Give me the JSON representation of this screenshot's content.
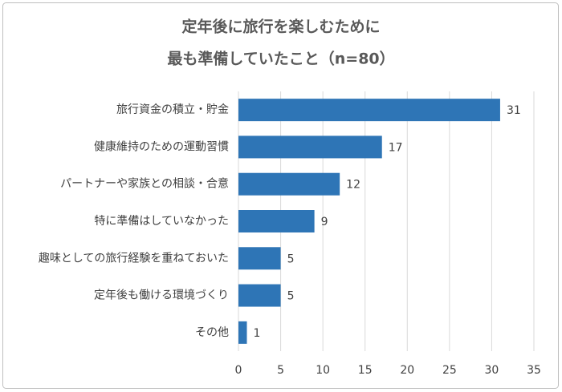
{
  "chart_data": {
    "type": "bar",
    "orientation": "horizontal",
    "title": [
      "定年後に旅行を楽しむために",
      "最も準備していたこと（n=80）"
    ],
    "categories": [
      "旅行資金の積立・貯金",
      "健康維持のための運動習慣",
      "パートナーや家族との相談・合意",
      "特に準備はしていなかった",
      "趣味としての旅行経験を重ねておいた",
      "定年後も働ける環境づくり",
      "その他"
    ],
    "values": [
      31,
      17,
      12,
      9,
      5,
      5,
      1
    ],
    "color": "#2e75b6",
    "xlim": [
      0,
      35
    ],
    "xticks": [
      0,
      5,
      10,
      15,
      20,
      25,
      30,
      35
    ],
    "grid": true
  }
}
